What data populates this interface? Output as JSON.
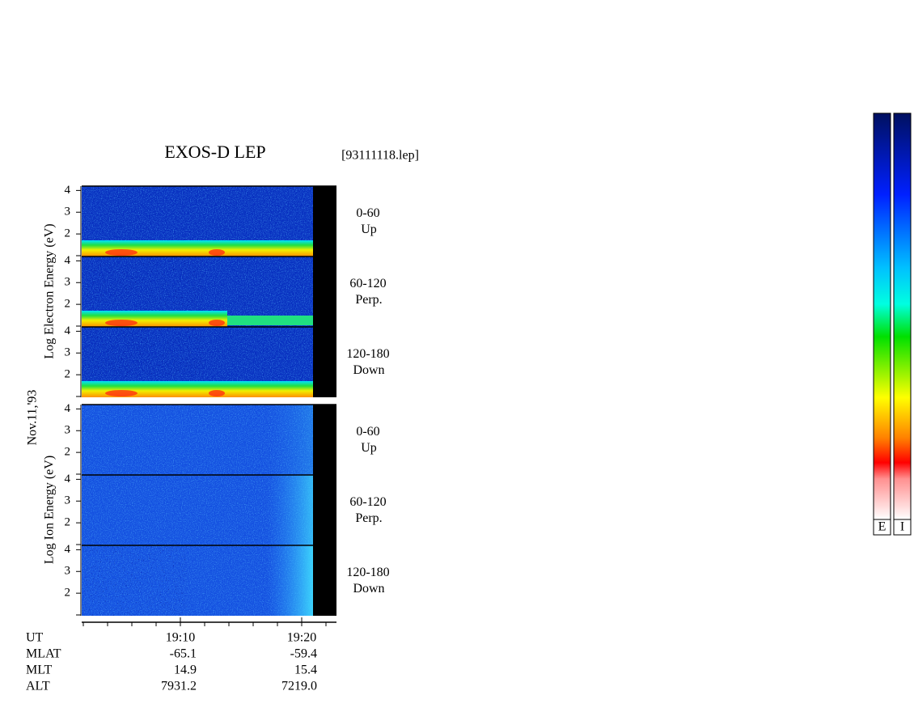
{
  "title": "EXOS-D LEP",
  "filename": "[93111118.lep]",
  "date": "Nov.11,'93",
  "electron_axis_label": "Log  Electron  Energy (eV)",
  "ion_axis_label": "Log  Ion  Energy (eV)",
  "ylim": [
    1,
    4.2
  ],
  "yticks": [
    2,
    3,
    4
  ],
  "xlim": [
    1142,
    1163
  ],
  "xticks": [
    {
      "value": 1150,
      "label": "19:10"
    },
    {
      "value": 1160,
      "label": "19:20"
    }
  ],
  "xminor_ticks": [
    1142,
    1144,
    1146,
    1148,
    1150,
    1152,
    1154,
    1156,
    1158,
    1160,
    1162
  ],
  "electron_panels": [
    {
      "pitch": "0-60",
      "direction": "Up"
    },
    {
      "pitch": "60-120",
      "direction": "Perp."
    },
    {
      "pitch": "120-180",
      "direction": "Down"
    }
  ],
  "ion_panels": [
    {
      "pitch": "0-60",
      "direction": "Up"
    },
    {
      "pitch": "60-120",
      "direction": "Perp."
    },
    {
      "pitch": "120-180",
      "direction": "Down"
    }
  ],
  "ephemeris": {
    "ut_label": "UT",
    "rows": [
      [
        "MLAT",
        "-65.1",
        "-59.4"
      ],
      [
        "MLT",
        "14.9",
        "15.4"
      ],
      [
        "ALT",
        "7931.2",
        "7219.0"
      ]
    ]
  },
  "colorbars": [
    "E",
    "I"
  ]
}
